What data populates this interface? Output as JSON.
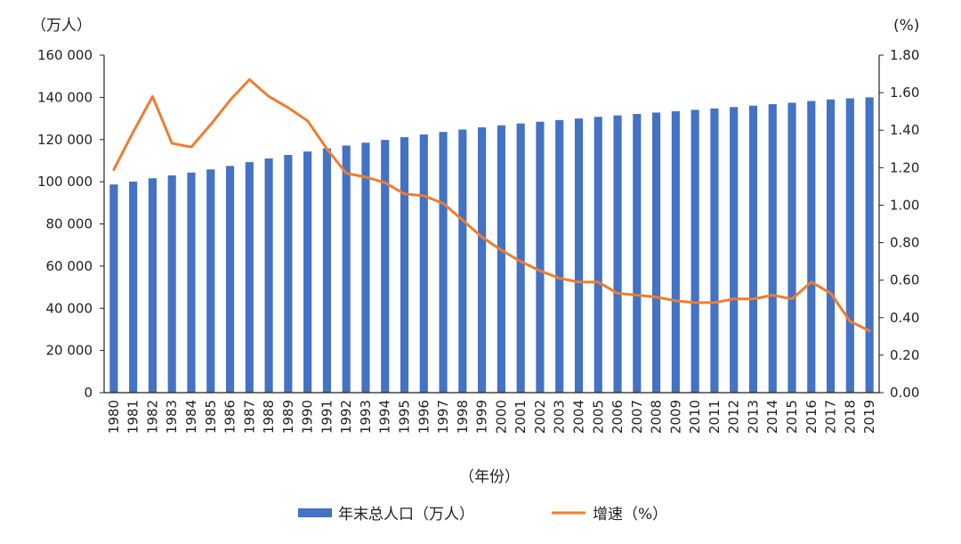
{
  "chart_data": {
    "type": "bar+line",
    "categories": [
      "1980",
      "1981",
      "1982",
      "1983",
      "1984",
      "1985",
      "1986",
      "1987",
      "1988",
      "1989",
      "1990",
      "1991",
      "1992",
      "1993",
      "1994",
      "1995",
      "1996",
      "1997",
      "1998",
      "1999",
      "2000",
      "2001",
      "2002",
      "2003",
      "2004",
      "2005",
      "2006",
      "2007",
      "2008",
      "2009",
      "2010",
      "2011",
      "2012",
      "2013",
      "2014",
      "2015",
      "2016",
      "2017",
      "2018",
      "2019"
    ],
    "y_left_unit": "（万人）",
    "y_right_unit": "(%)",
    "xlabel": "（年份）",
    "y_left_ticks": [
      "0",
      "20 000",
      "40 000",
      "60 000",
      "80 000",
      "100 000",
      "120 000",
      "140 000",
      "160 000"
    ],
    "y_right_ticks": [
      "0.00",
      "0.20",
      "0.40",
      "0.60",
      "0.80",
      "1.00",
      "1.20",
      "1.40",
      "1.60",
      "1.80"
    ],
    "ylim_left": [
      0,
      160000
    ],
    "ylim_right": [
      0,
      1.8
    ],
    "grid": false,
    "legend_position": "bottom",
    "series": [
      {
        "name": "年末总人口（万人）",
        "type": "bar",
        "axis": "left",
        "color": "#4472C4",
        "values": [
          98705,
          100072,
          101654,
          103008,
          104357,
          105851,
          107507,
          109300,
          111026,
          112704,
          114333,
          115823,
          117171,
          118517,
          119850,
          121121,
          122389,
          123626,
          124761,
          125786,
          126743,
          127627,
          128453,
          129227,
          129988,
          130756,
          131448,
          132129,
          132802,
          133450,
          134091,
          134735,
          135404,
          136072,
          136782,
          137462,
          138271,
          139008,
          139538,
          140005
        ]
      },
      {
        "name": "增速（%）",
        "type": "line",
        "axis": "right",
        "color": "#ED7D31",
        "values": [
          1.19,
          1.39,
          1.58,
          1.33,
          1.31,
          1.43,
          1.56,
          1.67,
          1.58,
          1.52,
          1.45,
          1.3,
          1.17,
          1.15,
          1.12,
          1.06,
          1.05,
          1.01,
          0.92,
          0.83,
          0.76,
          0.7,
          0.65,
          0.61,
          0.59,
          0.59,
          0.53,
          0.52,
          0.51,
          0.49,
          0.48,
          0.48,
          0.5,
          0.5,
          0.52,
          0.5,
          0.59,
          0.53,
          0.38,
          0.33
        ]
      }
    ]
  }
}
